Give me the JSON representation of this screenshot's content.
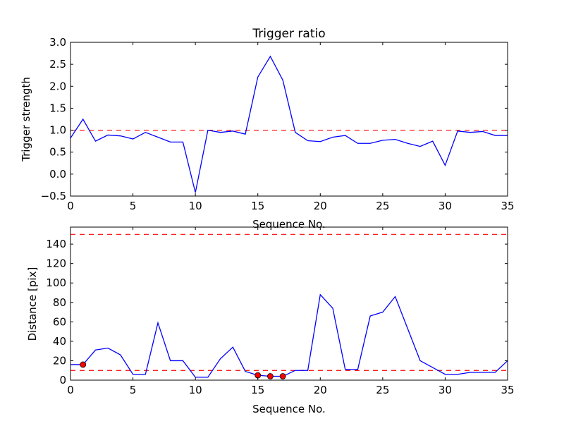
{
  "chart_data": [
    {
      "type": "line",
      "title": "Trigger ratio",
      "xlabel": "Sequence No.",
      "ylabel": "Trigger strength",
      "xlim": [
        0,
        35
      ],
      "ylim": [
        -0.5,
        3.0
      ],
      "xticks": [
        0,
        5,
        10,
        15,
        20,
        25,
        30,
        35
      ],
      "xtick_labels": [
        "0",
        "5",
        "10",
        "15",
        "20",
        "25",
        "30",
        "35"
      ],
      "yticks": [
        -0.5,
        0.0,
        0.5,
        1.0,
        1.5,
        2.0,
        2.5,
        3.0
      ],
      "ytick_labels": [
        "−0.5",
        "0.0",
        "0.5",
        "1.0",
        "1.5",
        "2.0",
        "2.5",
        "3.0"
      ],
      "grid": false,
      "series": [
        {
          "name": "trigger strength",
          "color": "#0000ff",
          "x": [
            0,
            1,
            2,
            3,
            4,
            5,
            6,
            7,
            8,
            9,
            10,
            11,
            12,
            13,
            14,
            15,
            16,
            17,
            18,
            19,
            20,
            21,
            22,
            23,
            24,
            25,
            26,
            27,
            28,
            29,
            30,
            31,
            32,
            33,
            34,
            35
          ],
          "y": [
            0.82,
            1.25,
            0.75,
            0.89,
            0.87,
            0.8,
            0.95,
            0.84,
            0.73,
            0.73,
            -0.42,
            1.0,
            0.95,
            0.98,
            0.91,
            2.21,
            2.68,
            2.14,
            0.95,
            0.76,
            0.74,
            0.84,
            0.88,
            0.7,
            0.7,
            0.77,
            0.79,
            0.7,
            0.63,
            0.75,
            0.2,
            0.98,
            0.95,
            0.97,
            0.88,
            0.88
          ]
        }
      ],
      "hlines": [
        {
          "y": 1.0,
          "color": "#ff0000",
          "style": "dashed"
        }
      ]
    },
    {
      "type": "line",
      "title": "",
      "xlabel": "Sequence No.",
      "ylabel": "Distance [pix]",
      "xlim": [
        0,
        35
      ],
      "ylim": [
        0,
        157.5
      ],
      "xticks": [
        0,
        5,
        10,
        15,
        20,
        25,
        30,
        35
      ],
      "xtick_labels": [
        "0",
        "5",
        "10",
        "15",
        "20",
        "25",
        "30",
        "35"
      ],
      "yticks": [
        0,
        20,
        40,
        60,
        80,
        100,
        120,
        140
      ],
      "ytick_labels": [
        "0",
        "20",
        "40",
        "60",
        "80",
        "100",
        "120",
        "140"
      ],
      "grid": false,
      "series": [
        {
          "name": "distance",
          "color": "#0000ff",
          "x": [
            0,
            1,
            2,
            3,
            4,
            5,
            6,
            7,
            8,
            9,
            10,
            11,
            12,
            13,
            14,
            15,
            16,
            17,
            18,
            19,
            20,
            21,
            22,
            23,
            24,
            25,
            26,
            27,
            28,
            29,
            30,
            31,
            32,
            33,
            34,
            35
          ],
          "y": [
            16,
            16,
            31,
            33,
            26,
            6,
            6,
            59,
            20,
            20,
            3,
            3,
            22,
            34,
            9,
            5,
            4,
            4,
            10,
            10,
            88,
            74,
            11,
            11,
            66,
            70,
            86,
            53,
            20,
            13,
            6,
            6,
            8,
            8,
            8,
            20
          ]
        }
      ],
      "markers": {
        "color": "#ff0000",
        "x": [
          1,
          15,
          16,
          17
        ],
        "y": [
          16,
          5,
          4,
          4
        ]
      },
      "hlines": [
        {
          "y": 150,
          "color": "#ff0000",
          "style": "dashed"
        },
        {
          "y": 10,
          "color": "#ff0000",
          "style": "dashed"
        }
      ]
    }
  ]
}
